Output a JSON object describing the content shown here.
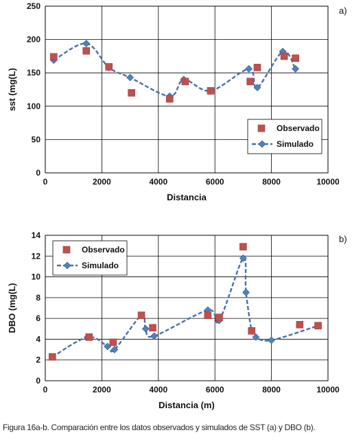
{
  "caption": "Figura 16a-b. Comparación entre los datos observados y simulados de SST (a) y DBO (b).",
  "colors": {
    "observado": "#c0504d",
    "simulado_line": "#4a6fa5",
    "simulado_marker": "#4f81bd",
    "grid": "#000000"
  },
  "chart_data": [
    {
      "type": "scatter",
      "panel": "a)",
      "xlabel": "Distancia",
      "ylabel": "sst (mg(L)",
      "xlim": [
        0,
        10000
      ],
      "ylim": [
        0,
        250
      ],
      "xticks": [
        0,
        2000,
        4000,
        6000,
        8000,
        10000
      ],
      "yticks": [
        0,
        50,
        100,
        150,
        200,
        250
      ],
      "grid": true,
      "legend_position": "lower-right",
      "series": [
        {
          "name": "Observado",
          "style": "square",
          "x": [
            300,
            1450,
            2250,
            3050,
            4400,
            4950,
            5850,
            7250,
            7500,
            8450,
            8850
          ],
          "y": [
            174,
            183,
            159,
            120,
            111,
            137,
            123,
            137,
            158,
            175,
            172
          ]
        },
        {
          "name": "Simulado",
          "style": "dashed-diamond",
          "x": [
            300,
            1450,
            2250,
            3000,
            4400,
            4900,
            5850,
            7200,
            7500,
            8400,
            8850
          ],
          "y": [
            169,
            194,
            158,
            143,
            115,
            140,
            123,
            156,
            128,
            182,
            156
          ]
        }
      ]
    },
    {
      "type": "scatter",
      "panel": "b)",
      "xlabel": "Distancia (m)",
      "ylabel": "DBO (mg(L)",
      "xlim": [
        0,
        10000
      ],
      "ylim": [
        0,
        14
      ],
      "xticks": [
        0,
        2000,
        4000,
        6000,
        8000,
        10000
      ],
      "yticks": [
        0,
        2,
        4,
        6,
        8,
        10,
        12,
        14
      ],
      "grid": true,
      "legend_position": "upper-left",
      "series": [
        {
          "name": "Observado",
          "style": "square",
          "x": [
            250,
            1550,
            2400,
            3400,
            3800,
            5750,
            6150,
            7000,
            7300,
            9000,
            9650
          ],
          "y": [
            2.3,
            4.2,
            3.7,
            6.3,
            5.1,
            6.3,
            6.1,
            12.9,
            4.8,
            5.4,
            5.3
          ]
        },
        {
          "name": "Simulado",
          "style": "dashed-diamond",
          "x": [
            250,
            1500,
            2200,
            2450,
            3400,
            3550,
            3850,
            5750,
            6150,
            7000,
            7100,
            7300,
            7450,
            8000,
            9650
          ],
          "y": [
            2.3,
            4.2,
            3.3,
            3.0,
            6.3,
            5.0,
            4.3,
            6.8,
            5.8,
            11.8,
            8.5,
            4.8,
            4.2,
            3.9,
            5.3
          ]
        }
      ]
    }
  ]
}
